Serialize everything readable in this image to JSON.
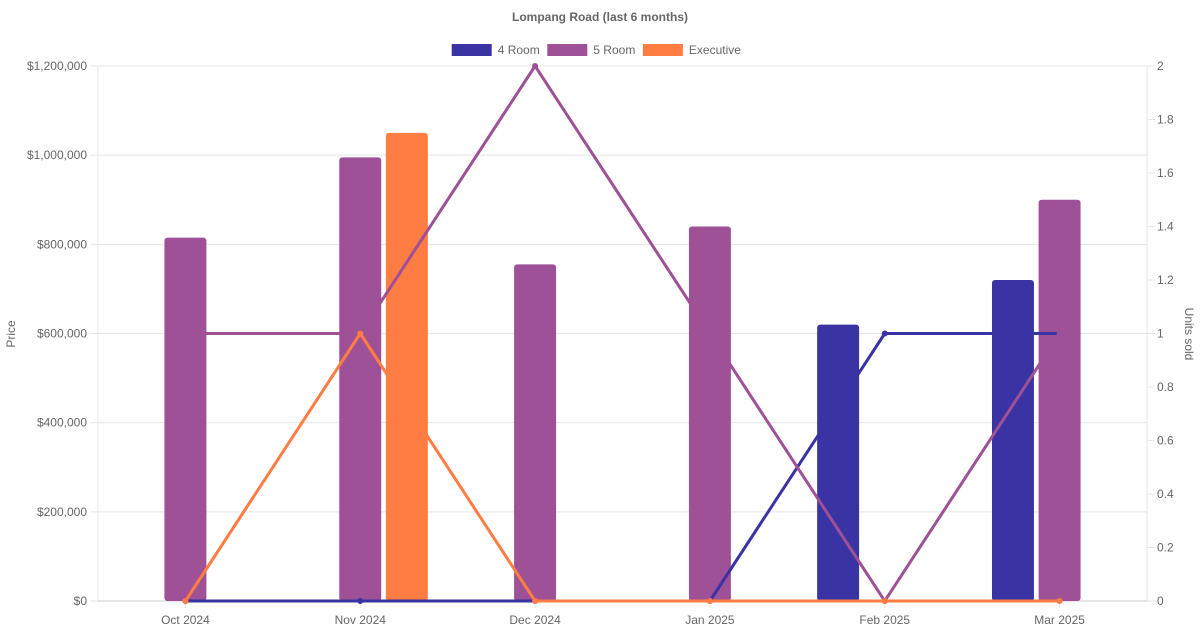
{
  "chart_data": {
    "type": "bar",
    "title": "Lompang Road (last 6 months)",
    "categories": [
      "Oct 2024",
      "Nov 2024",
      "Dec 2024",
      "Jan 2025",
      "Feb 2025",
      "Mar 2025"
    ],
    "ylabel": "Price",
    "y2label": "Units sold",
    "ylim": [
      0,
      1200000
    ],
    "y2lim": [
      0,
      2
    ],
    "yticks": [
      "$0",
      "$200,000",
      "$400,000",
      "$600,000",
      "$800,000",
      "$1,000,000",
      "$1,200,000"
    ],
    "y2ticks": [
      "0",
      "0.2",
      "0.4",
      "0.6",
      "0.8",
      "1",
      "1.2",
      "1.4",
      "1.6",
      "1.8",
      "2"
    ],
    "legend_position": "top",
    "grid": true,
    "series": [
      {
        "name": "4 Room",
        "color": "#3a33a3",
        "price": [
          null,
          null,
          null,
          null,
          620000,
          720000
        ],
        "units": [
          0,
          0,
          0,
          0,
          1,
          1
        ]
      },
      {
        "name": "5 Room",
        "color": "#9e5196",
        "price": [
          815000,
          995000,
          755000,
          840000,
          null,
          900000
        ],
        "units": [
          1,
          1,
          2,
          1,
          0,
          1
        ]
      },
      {
        "name": "Executive",
        "color": "#ff7c43",
        "price": [
          null,
          1050000,
          null,
          null,
          null,
          null
        ],
        "units": [
          0,
          1,
          0,
          0,
          0,
          0
        ]
      }
    ]
  }
}
